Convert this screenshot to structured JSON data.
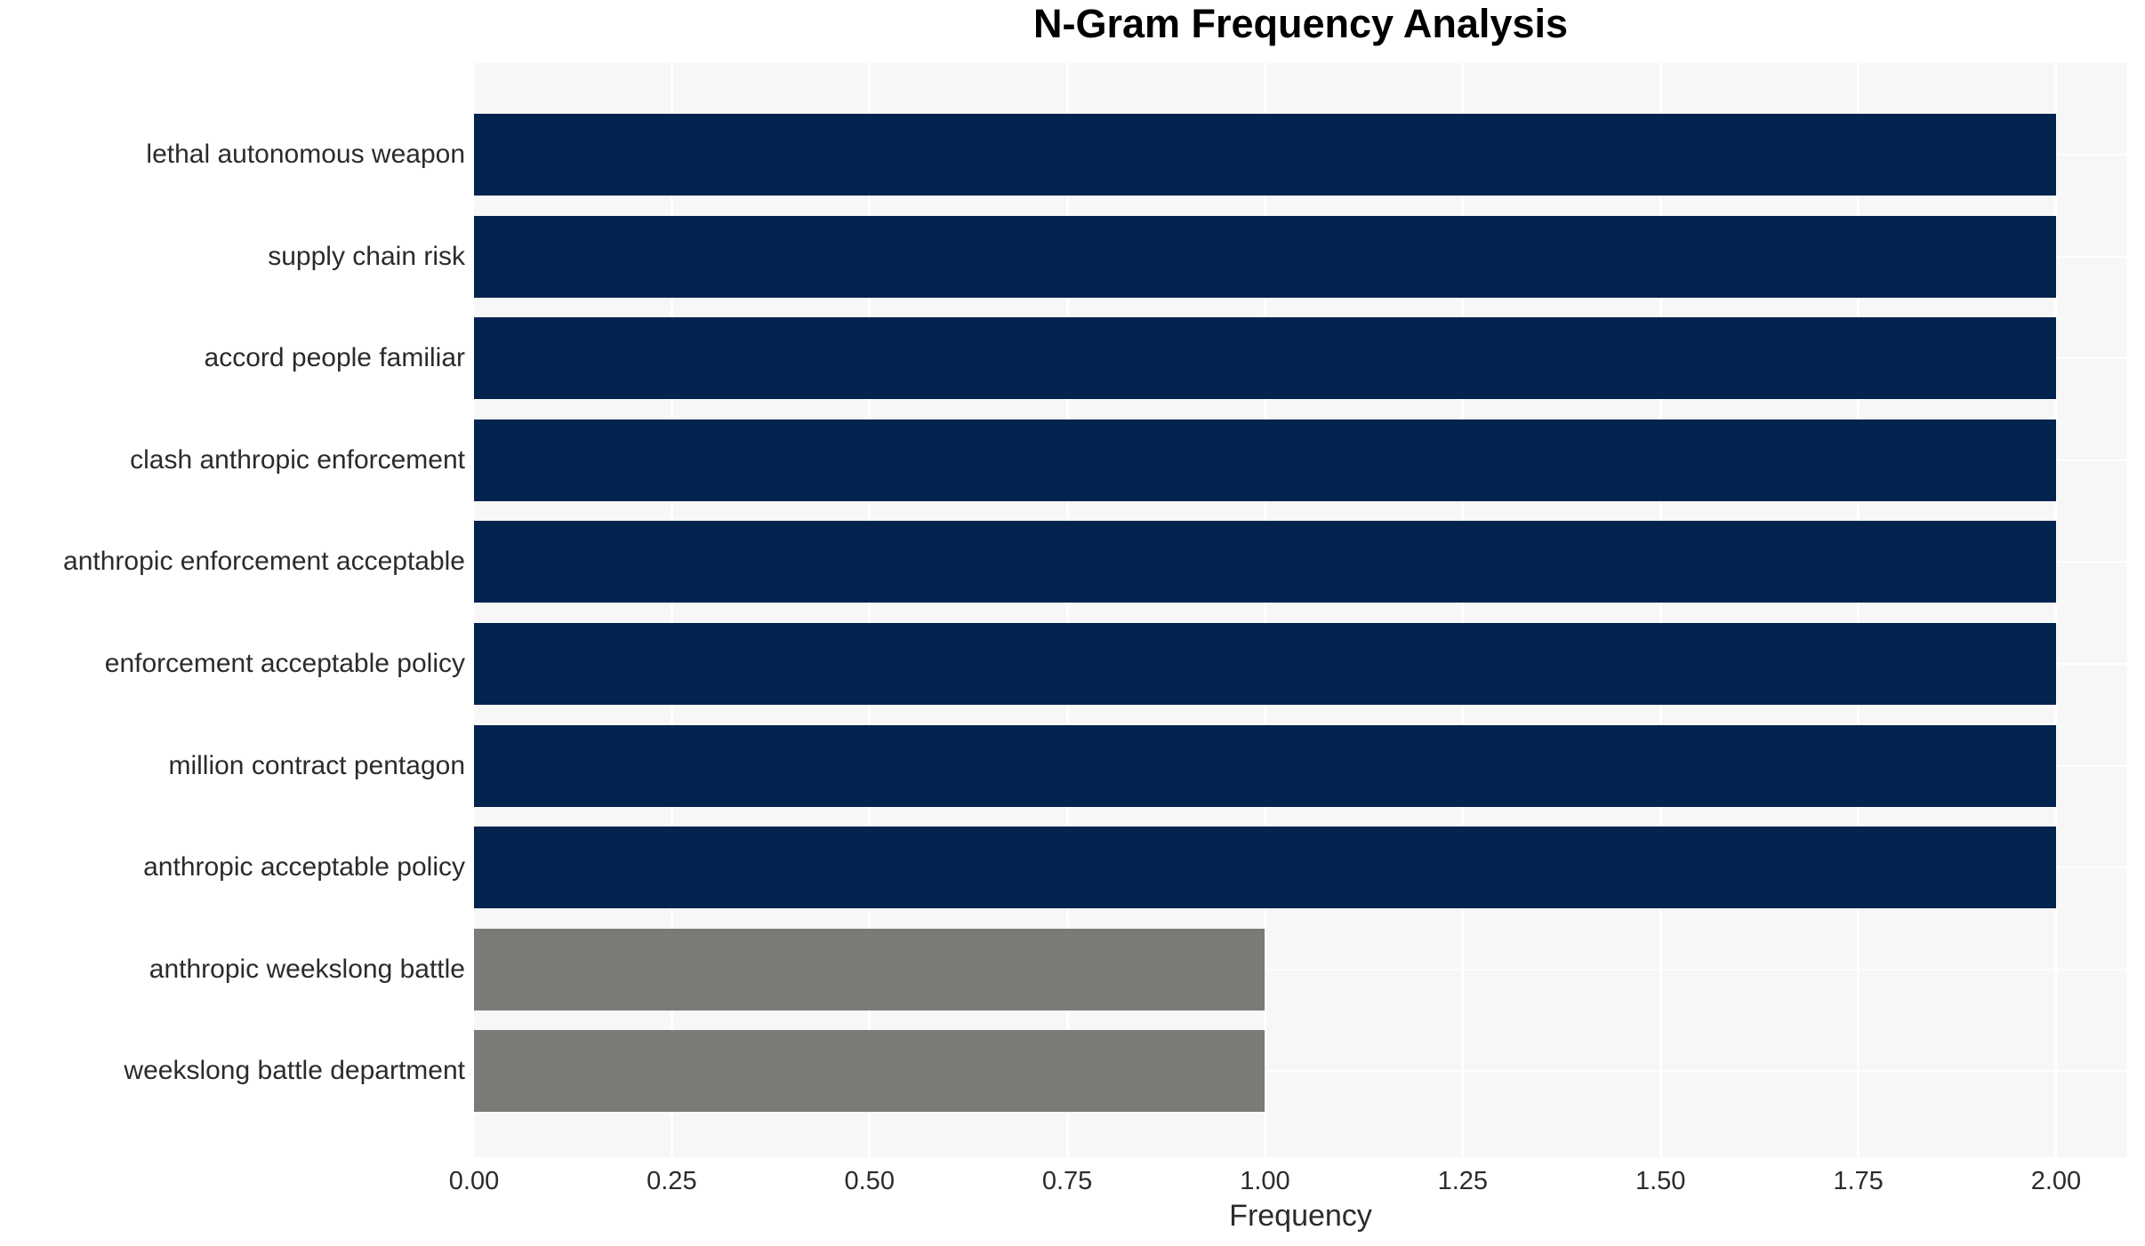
{
  "chart_data": {
    "type": "bar",
    "orientation": "horizontal",
    "title": "N-Gram Frequency Analysis",
    "xlabel": "Frequency",
    "ylabel": "",
    "categories": [
      "lethal autonomous weapon",
      "supply chain risk",
      "accord people familiar",
      "clash anthropic enforcement",
      "anthropic enforcement acceptable",
      "enforcement acceptable policy",
      "million contract pentagon",
      "anthropic acceptable policy",
      "anthropic weekslong battle",
      "weekslong battle department"
    ],
    "values": [
      2,
      2,
      2,
      2,
      2,
      2,
      2,
      2,
      1,
      1
    ],
    "colors": [
      "#02244e",
      "#02244e",
      "#02244e",
      "#02244e",
      "#02244e",
      "#02244e",
      "#02244e",
      "#02244e",
      "#7b7a77",
      "#7b7a77"
    ],
    "xticks": [
      "0.00",
      "0.25",
      "0.50",
      "0.75",
      "1.00",
      "1.25",
      "1.50",
      "1.75",
      "2.00"
    ],
    "xtick_values": [
      0,
      0.25,
      0.5,
      0.75,
      1.0,
      1.25,
      1.5,
      1.75,
      2.0
    ],
    "xlim": [
      0,
      2.09
    ],
    "grid": true,
    "legend": false,
    "plot_background": "#f7f7f7",
    "grid_color": "#ffffff"
  }
}
